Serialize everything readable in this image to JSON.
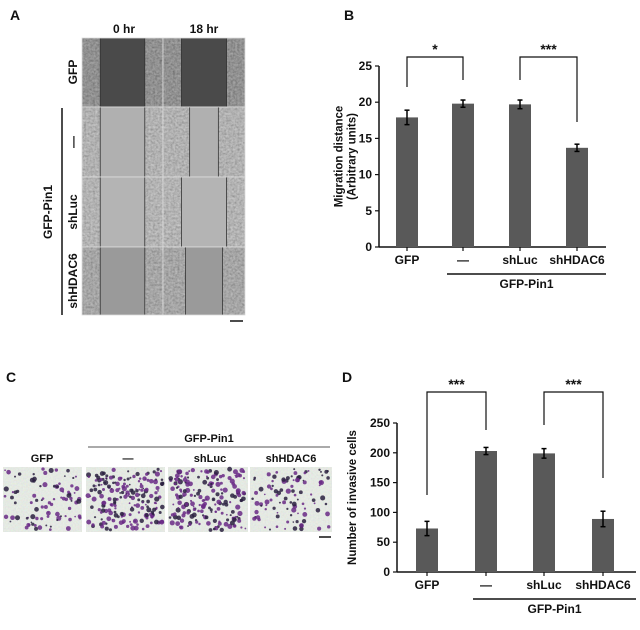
{
  "panels": {
    "a": {
      "letter": "A",
      "columns": [
        "0 hr",
        "18 hr"
      ],
      "rows": [
        "GFP",
        "—",
        "shLuc",
        "shHDAC6"
      ],
      "group_label": "GFP-Pin1"
    },
    "c": {
      "letter": "C",
      "group_label": "GFP-Pin1",
      "columns": [
        "GFP",
        "—",
        "shLuc",
        "shHDAC6"
      ],
      "stain_color": "#6a2a86"
    },
    "b": {
      "letter": "B"
    },
    "d": {
      "letter": "D"
    }
  },
  "chart_data": [
    {
      "type": "bar",
      "panel": "B",
      "categories": [
        "GFP",
        "—",
        "shLuc",
        "shHDAC6"
      ],
      "group_label": "GFP-Pin1",
      "values": [
        17.9,
        19.8,
        19.7,
        13.7
      ],
      "errors": [
        1.0,
        0.5,
        0.6,
        0.5
      ],
      "ylabel": [
        "Migration distance",
        "(Arbitrary units)"
      ],
      "ylim": [
        0,
        25
      ],
      "yticks": [
        "0",
        "5",
        "10",
        "15",
        "20",
        "25"
      ],
      "grid": false,
      "bar_color": "#595959",
      "significance": [
        {
          "from": 0,
          "to": 1,
          "label": "*"
        },
        {
          "from": 2,
          "to": 3,
          "label": "***"
        }
      ]
    },
    {
      "type": "bar",
      "panel": "D",
      "categories": [
        "GFP",
        "—",
        "shLuc",
        "shHDAC6"
      ],
      "group_label": "GFP-Pin1",
      "values": [
        73,
        203,
        199,
        89
      ],
      "errors": [
        12,
        6,
        8,
        13
      ],
      "ylabel": [
        "Number of invasive cells"
      ],
      "ylim": [
        0,
        250
      ],
      "yticks": [
        "0",
        "50",
        "100",
        "150",
        "200",
        "250"
      ],
      "grid": false,
      "bar_color": "#595959",
      "significance": [
        {
          "from": 0,
          "to": 1,
          "label": "***"
        },
        {
          "from": 2,
          "to": 3,
          "label": "***"
        }
      ]
    }
  ]
}
